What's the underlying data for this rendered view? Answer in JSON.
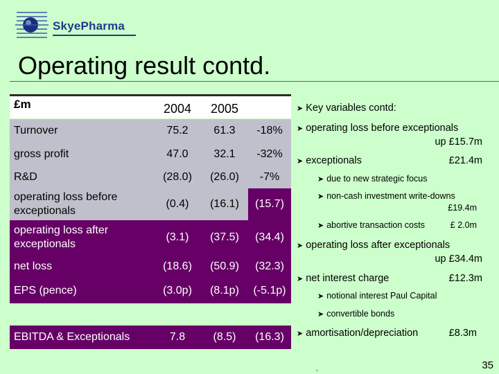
{
  "brand": {
    "name": "SkyePharma"
  },
  "slide": {
    "title": "Operating result contd.",
    "page_number": "35",
    "footnote_mark": ","
  },
  "table": {
    "header": {
      "label": "£m",
      "col1": "2004",
      "col2": "2005"
    },
    "rows": [
      {
        "label": "Turnover",
        "v2004": "75.2",
        "v2005": "61.3",
        "change": "-18%"
      },
      {
        "label": "gross profit",
        "v2004": "47.0",
        "v2005": "32.1",
        "change": "-32%"
      },
      {
        "label": "R&D",
        "v2004": "(28.0)",
        "v2005": "(26.0)",
        "change": "-7%"
      },
      {
        "label": "operating loss before exceptionals",
        "v2004": "(0.4)",
        "v2005": "(16.1)",
        "change": "(15.7)"
      },
      {
        "label": "operating loss after exceptionals",
        "v2004": "(3.1)",
        "v2005": "(37.5)",
        "change": "(34.4)"
      },
      {
        "label": "net loss",
        "v2004": "(18.6)",
        "v2005": "(50.9)",
        "change": "(32.3)"
      },
      {
        "label": "EPS (pence)",
        "v2004": "(3.0p)",
        "v2005": "(8.1p)",
        "change": "(-5.1p)"
      }
    ],
    "ebitda": {
      "label": "EBITDA & Exceptionals",
      "v2004": "7.8",
      "v2005": "(8.5)",
      "change": "(16.3)"
    }
  },
  "notes": {
    "heading": "Key variables contd:",
    "op_before": {
      "text": "operating loss before exceptionals",
      "amount": "up £15.7m"
    },
    "exceptionals": {
      "text": "exceptionals",
      "amount": "£21.4m"
    },
    "strategic": {
      "text": "due to new strategic focus"
    },
    "writedowns": {
      "text": "non-cash investment write-downs",
      "amount": "£19.4m"
    },
    "abortive": {
      "text": "abortive transaction costs",
      "amount": "£ 2.0m"
    },
    "op_after": {
      "text": "operating loss after exceptionals",
      "amount": "up £34.4m"
    },
    "interest": {
      "text": "net interest charge",
      "amount": "£12.3m"
    },
    "notional": {
      "text": "notional interest Paul Capital"
    },
    "convertible": {
      "text": "convertible bonds"
    },
    "amort": {
      "text": "amortisation/depreciation",
      "amount": "£8.3m"
    }
  }
}
